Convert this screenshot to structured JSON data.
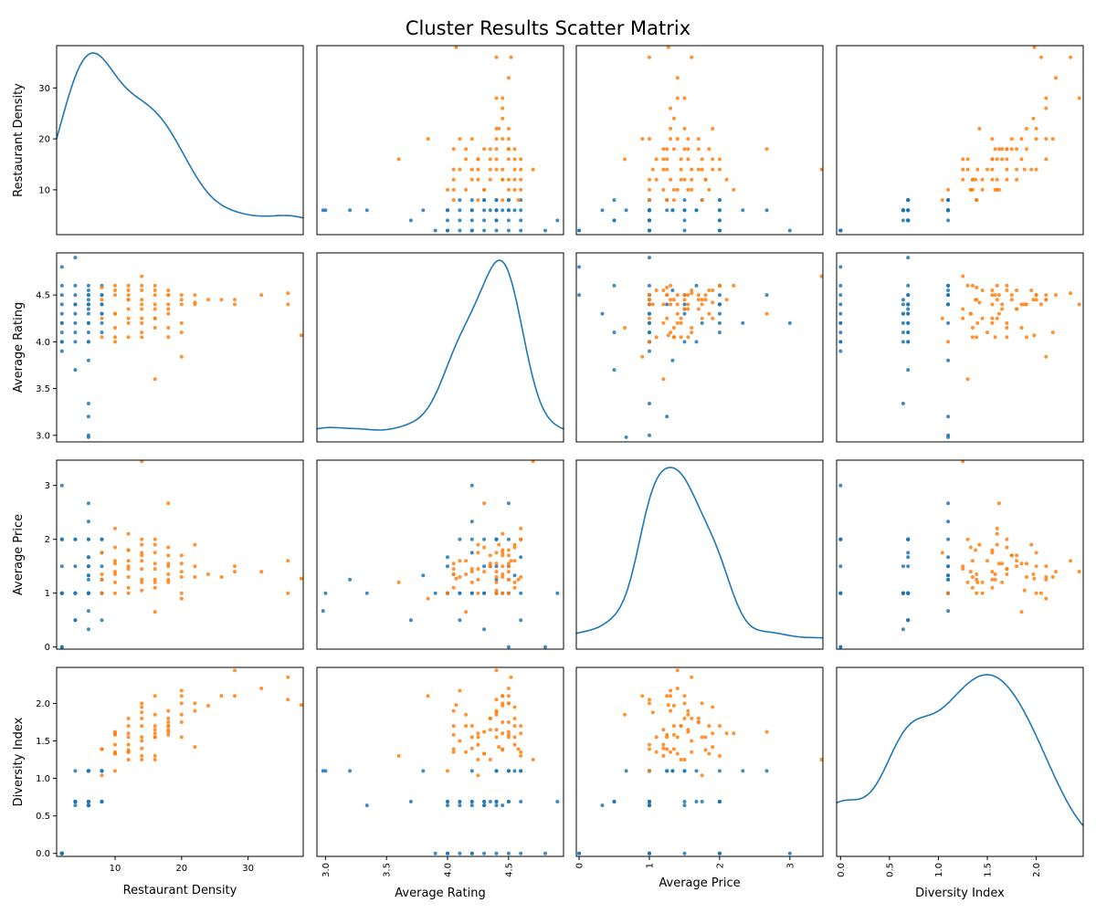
{
  "chart_data": {
    "type": "scatter",
    "title": "Cluster Results Scatter Matrix",
    "variables": [
      "Restaurant Density",
      "Average Rating",
      "Average Price",
      "Diversity Index"
    ],
    "ranges": {
      "Restaurant Density": [
        1.2,
        38.3
      ],
      "Average Rating": [
        2.93,
        4.95
      ],
      "Average Price": [
        -0.04,
        3.47
      ],
      "Diversity Index": [
        -0.04,
        2.48
      ]
    },
    "ticks": {
      "Restaurant Density": {
        "x": [
          "10",
          "20",
          "30"
        ],
        "y": [
          "10",
          "20",
          "30"
        ]
      },
      "Average Rating": {
        "x": [
          "3.0",
          "3.5",
          "4.0",
          "4.5"
        ],
        "y": [
          "3.0",
          "3.5",
          "4.0",
          "4.5"
        ]
      },
      "Average Price": {
        "x": [
          "0",
          "1",
          "2",
          "3"
        ],
        "y": [
          "0",
          "1",
          "2",
          "3"
        ]
      },
      "Diversity Index": {
        "x": [
          "0.0",
          "0.5",
          "1.0",
          "1.5",
          "2.0",
          "2.5"
        ],
        "y": [
          "0.0",
          "0.5",
          "1.0",
          "1.5",
          "2.0",
          "2.5"
        ]
      }
    },
    "diagonal": "kde",
    "grid": false,
    "legend": "none",
    "colors": {
      "cluster_0": "#1f77b4",
      "cluster_1": "#ff7f0e",
      "kde_line": "#1f77b4"
    },
    "series": [
      {
        "color": "#1f77b4",
        "points": [
          [
            6,
            4.5,
            1.0,
            0.69
          ],
          [
            6,
            4.4,
            2.0,
            0.69
          ],
          [
            4,
            4.2,
            1.0,
            0.69
          ],
          [
            2,
            4.6,
            2.0,
            0.0
          ],
          [
            2,
            4.0,
            1.0,
            0.0
          ],
          [
            6,
            3.8,
            1.33,
            1.1
          ],
          [
            8,
            4.4,
            1.5,
            1.1
          ],
          [
            6,
            4.3,
            0.33,
            0.64
          ],
          [
            4,
            4.0,
            1.0,
            0.69
          ],
          [
            2,
            4.8,
            0.0,
            0.0
          ],
          [
            6,
            4.5,
            2.67,
            1.1
          ],
          [
            8,
            4.3,
            1.0,
            0.69
          ],
          [
            4,
            4.4,
            2.0,
            0.69
          ],
          [
            2,
            4.2,
            3.0,
            0.0
          ],
          [
            6,
            4.6,
            1.67,
            1.1
          ],
          [
            8,
            4.1,
            0.5,
            0.69
          ],
          [
            6,
            4.4,
            1.0,
            0.64
          ],
          [
            4,
            4.5,
            1.5,
            1.1
          ],
          [
            2,
            4.0,
            1.0,
            0.0
          ],
          [
            6,
            4.2,
            2.33,
            1.1
          ],
          [
            8,
            4.4,
            1.25,
            1.1
          ],
          [
            6,
            3.34,
            1.0,
            0.64
          ],
          [
            4,
            3.7,
            0.5,
            0.69
          ],
          [
            2,
            4.4,
            2.0,
            0.0
          ],
          [
            6,
            4.0,
            1.67,
            0.69
          ],
          [
            6,
            3.0,
            1.0,
            1.1
          ],
          [
            8,
            4.5,
            2.0,
            0.69
          ],
          [
            4,
            4.3,
            1.0,
            0.64
          ],
          [
            2,
            3.9,
            1.0,
            0.0
          ],
          [
            6,
            4.55,
            1.33,
            1.1
          ],
          [
            6,
            4.1,
            1.0,
            0.64
          ],
          [
            4,
            4.6,
            0.5,
            0.69
          ],
          [
            2,
            4.3,
            1.5,
            0.0
          ],
          [
            6,
            2.98,
            0.67,
            1.1
          ],
          [
            8,
            4.2,
            1.75,
            0.69
          ],
          [
            6,
            4.45,
            1.0,
            0.64
          ],
          [
            4,
            4.1,
            2.0,
            0.69
          ],
          [
            2,
            4.5,
            0.0,
            0.0
          ],
          [
            6,
            3.2,
            1.25,
            1.1
          ],
          [
            6,
            4.35,
            1.5,
            0.69
          ],
          [
            8,
            4.6,
            1.0,
            1.1
          ],
          [
            4,
            4.4,
            1.0,
            0.69
          ],
          [
            2,
            4.2,
            2.0,
            0.0
          ],
          [
            6,
            4.2,
            1.0,
            0.64
          ],
          [
            8,
            4.3,
            2.0,
            0.69
          ],
          [
            4,
            4.9,
            1.0,
            0.69
          ],
          [
            6,
            4.0,
            1.5,
            0.64
          ],
          [
            2,
            4.1,
            1.0,
            0.0
          ],
          [
            6,
            4.4,
            2.0,
            1.1
          ],
          [
            8,
            4.5,
            1.0,
            1.1
          ]
        ]
      },
      {
        "color": "#ff7f0e",
        "points": [
          [
            10,
            4.3,
            1.4,
            1.33
          ],
          [
            12,
            4.5,
            1.8,
            1.55
          ],
          [
            14,
            4.2,
            1.2,
            1.4
          ],
          [
            16,
            4.6,
            2.0,
            1.7
          ],
          [
            18,
            4.35,
            1.5,
            1.8
          ],
          [
            20,
            4.5,
            1.0,
            2.0
          ],
          [
            22,
            4.4,
            1.3,
            1.9
          ],
          [
            14,
            4.1,
            1.6,
            1.5
          ],
          [
            10,
            4.0,
            1.0,
            1.1
          ],
          [
            12,
            4.45,
            2.1,
            1.6
          ],
          [
            16,
            3.6,
            1.2,
            1.3
          ],
          [
            18,
            4.5,
            1.7,
            1.75
          ],
          [
            20,
            3.84,
            0.9,
            2.1
          ],
          [
            24,
            4.45,
            1.35,
            1.97
          ],
          [
            28,
            4.45,
            1.5,
            2.1
          ],
          [
            32,
            4.5,
            1.4,
            2.2
          ],
          [
            36,
            4.4,
            1.0,
            2.05
          ],
          [
            38,
            4.07,
            1.27,
            1.98
          ],
          [
            28,
            4.4,
            1.4,
            2.44
          ],
          [
            36,
            4.52,
            1.6,
            2.35
          ],
          [
            26,
            4.45,
            1.3,
            2.1
          ],
          [
            14,
            4.7,
            3.45,
            1.25
          ],
          [
            18,
            4.3,
            2.67,
            1.62
          ],
          [
            8,
            4.58,
            1.25,
            1.39
          ],
          [
            10,
            4.6,
            2.2,
            1.6
          ],
          [
            12,
            4.35,
            1.5,
            1.25
          ],
          [
            14,
            4.55,
            1.9,
            1.95
          ],
          [
            16,
            4.15,
            0.65,
            1.85
          ],
          [
            8,
            4.25,
            1.75,
            1.04
          ],
          [
            10,
            4.15,
            1.6,
            1.35
          ],
          [
            12,
            4.25,
            1.0,
            1.45
          ],
          [
            14,
            4.05,
            1.45,
            1.7
          ],
          [
            16,
            4.4,
            1.75,
            1.55
          ],
          [
            18,
            4.4,
            1.2,
            1.65
          ],
          [
            20,
            4.2,
            1.4,
            1.55
          ],
          [
            22,
            4.42,
            1.9,
            1.42
          ],
          [
            10,
            4.5,
            1.55,
            1.62
          ],
          [
            12,
            4.6,
            1.3,
            1.35
          ],
          [
            14,
            4.4,
            1.05,
            1.88
          ],
          [
            16,
            4.25,
            1.45,
            1.25
          ],
          [
            18,
            4.55,
            1.85,
            1.7
          ],
          [
            20,
            4.1,
            1.3,
            2.17
          ],
          [
            12,
            4.05,
            1.1,
            1.35
          ],
          [
            14,
            4.35,
            1.7,
            1.8
          ],
          [
            16,
            4.5,
            1.25,
            2.1
          ],
          [
            18,
            4.05,
            1.55,
            1.9
          ],
          [
            10,
            4.3,
            1.85,
            1.33
          ],
          [
            8,
            4.05,
            1.35,
            1.39
          ],
          [
            12,
            4.55,
            1.6,
            1.8
          ],
          [
            14,
            4.25,
            1.25,
            1.55
          ],
          [
            16,
            4.55,
            1.1,
            1.55
          ],
          [
            18,
            4.15,
            1.35,
            1.7
          ],
          [
            20,
            4.45,
            1.7,
            1.75
          ],
          [
            22,
            4.5,
            1.5,
            2.0
          ],
          [
            10,
            4.05,
            1.35,
            1.58
          ],
          [
            12,
            4.45,
            1.8,
            1.38
          ],
          [
            14,
            4.6,
            2.0,
            1.3
          ],
          [
            16,
            4.35,
            1.55,
            1.65
          ],
          [
            8,
            4.45,
            1.0,
            1.39
          ],
          [
            10,
            4.55,
            1.2,
            1.45
          ],
          [
            12,
            4.2,
            1.45,
            1.7
          ],
          [
            14,
            4.45,
            1.75,
            2.0
          ],
          [
            16,
            4.25,
            1.9,
            1.6
          ],
          [
            18,
            4.5,
            1.25,
            1.58
          ],
          [
            20,
            4.4,
            1.55,
            1.85
          ]
        ]
      }
    ]
  }
}
